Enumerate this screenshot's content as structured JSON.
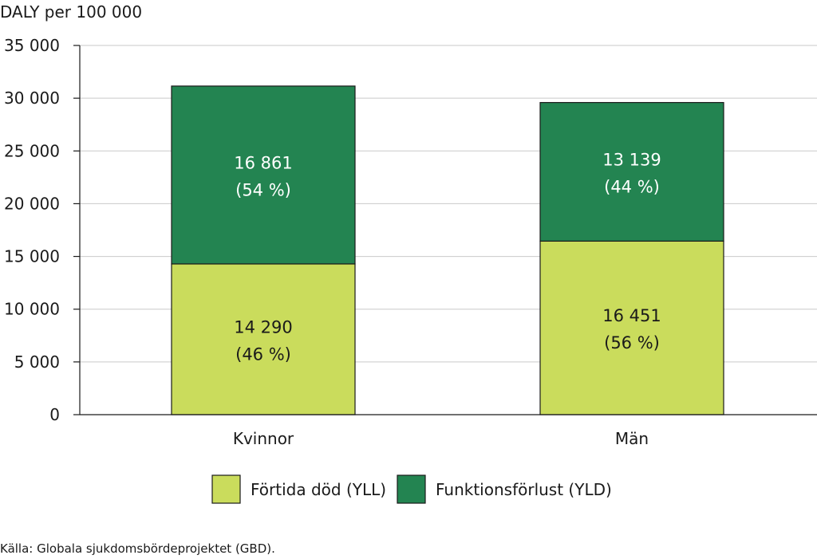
{
  "chart_data": {
    "type": "bar",
    "stacked": true,
    "ylabel": "DALY per 100 000",
    "ylim": [
      0,
      35000
    ],
    "yticks": [
      0,
      5000,
      10000,
      15000,
      20000,
      25000,
      30000,
      35000
    ],
    "ytick_labels": [
      "0",
      "5 000",
      "10 000",
      "15 000",
      "20 000",
      "25 000",
      "30 000",
      "35 000"
    ],
    "grid": true,
    "legend_position": "bottom",
    "categories": [
      "Kvinnor",
      "Män"
    ],
    "series": [
      {
        "name": "Förtida död (YLL)",
        "color": "#cadc5c",
        "values": [
          14290,
          16451
        ],
        "labels": [
          "14 290",
          "16 451"
        ],
        "pct_labels": [
          "(46 %)",
          "(56 %)"
        ],
        "label_color": "#1a1a1a"
      },
      {
        "name": "Funktionsförlust (YLD)",
        "color": "#238451",
        "values": [
          16861,
          13139
        ],
        "labels": [
          "16 861",
          "13 139"
        ],
        "pct_labels": [
          "(54 %)",
          "(44 %)"
        ],
        "label_color": "#ffffff"
      }
    ],
    "source": "Källa: Globala sjukdomsbördeprojektet (GBD)."
  }
}
